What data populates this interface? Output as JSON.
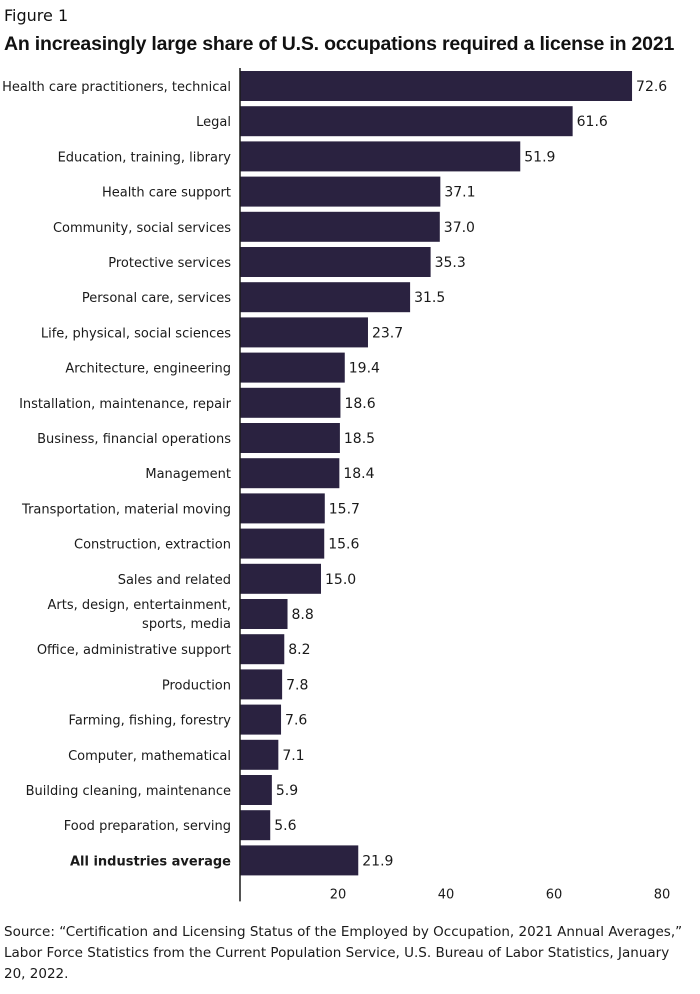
{
  "figure_label": "Figure 1",
  "title": "An increasingly large share of U.S. occupations required a license in 2021",
  "source": "Source: “Certification and Licensing Status of the Employed by Occupation, 2021 Annual Averages,” Labor Force Statistics from the Current Population Service, U.S. Bureau of Labor Statistics, January 20, 2022.",
  "colors": {
    "bar": "#2a2240",
    "axis": "#1a1a1a"
  },
  "chart_data": {
    "type": "bar",
    "orientation": "horizontal",
    "categories": [
      "Health care practitioners, technical",
      "Legal",
      "Education, training, library",
      "Health care support",
      "Community, social services",
      "Protective services",
      "Personal care, services",
      "Life, physical, social sciences",
      "Architecture, engineering",
      "Installation, maintenance, repair",
      "Business, financial operations",
      "Management",
      "Transportation, material moving",
      "Construction, extraction",
      "Sales and related",
      "Arts, design, entertainment, sports, media",
      "Office, administrative support",
      "Production",
      "Farming, fishing, forestry",
      "Computer, mathematical",
      "Building cleaning, maintenance",
      "Food preparation, serving",
      "All industries average"
    ],
    "values": [
      72.6,
      61.6,
      51.9,
      37.1,
      37.0,
      35.3,
      31.5,
      23.7,
      19.4,
      18.6,
      18.5,
      18.4,
      15.7,
      15.6,
      15.0,
      8.8,
      8.2,
      7.8,
      7.6,
      7.1,
      5.9,
      5.6,
      21.9
    ],
    "value_labels": [
      "72.6",
      "61.6",
      "51.9",
      "37.1",
      "37.0",
      "35.3",
      "31.5",
      "23.7",
      "19.4",
      "18.6",
      "18.5",
      "18.4",
      "15.7",
      "15.6",
      "15.0",
      "8.8",
      "8.2",
      "7.8",
      "7.6",
      "7.1",
      "5.9",
      "5.6",
      "21.9"
    ],
    "emphasized_category": "All industries average",
    "xticks": [
      20,
      40,
      60,
      80
    ],
    "xlim": [
      0,
      80
    ],
    "title": "An increasingly large share of U.S. occupations required a license in 2021",
    "xlabel": "",
    "ylabel": "",
    "grid": false,
    "legend": "none"
  }
}
